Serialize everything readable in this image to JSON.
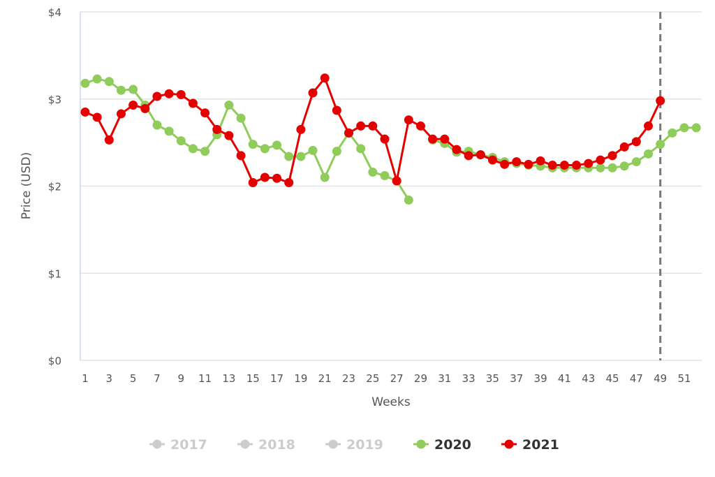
{
  "chart_data": {
    "type": "line",
    "title": "",
    "xlabel": "Weeks",
    "ylabel": "Price (USD)",
    "ylim": [
      0,
      4
    ],
    "xlim": [
      1,
      52
    ],
    "y_ticks": [
      "$0",
      "$1",
      "$2",
      "$3",
      "$4"
    ],
    "y_tick_values": [
      0,
      1,
      2,
      3,
      4
    ],
    "x_ticks": [
      1,
      3,
      5,
      7,
      9,
      11,
      13,
      15,
      17,
      19,
      21,
      23,
      25,
      27,
      29,
      31,
      33,
      35,
      37,
      39,
      41,
      43,
      45,
      47,
      49,
      51
    ],
    "grid": "horizontal",
    "marker_line_week": 49,
    "legend_position": "bottom",
    "legend": [
      {
        "name": "2017",
        "color": "#cccccc",
        "active": false
      },
      {
        "name": "2018",
        "color": "#cccccc",
        "active": false
      },
      {
        "name": "2019",
        "color": "#cccccc",
        "active": false
      },
      {
        "name": "2020",
        "color": "#8fcc5a",
        "active": true
      },
      {
        "name": "2021",
        "color": "#e50000",
        "active": true
      }
    ],
    "series": [
      {
        "name": "2020",
        "color": "#8fcc5a",
        "x": [
          1,
          2,
          3,
          4,
          5,
          6,
          7,
          8,
          9,
          10,
          11,
          12,
          13,
          14,
          15,
          16,
          17,
          18,
          19,
          20,
          21,
          22,
          23,
          24,
          25,
          26,
          27,
          28,
          30,
          31,
          32,
          33,
          34,
          35,
          36,
          37,
          38,
          39,
          40,
          41,
          42,
          43,
          44,
          45,
          46,
          47,
          48,
          49,
          50,
          51,
          52
        ],
        "values": [
          3.18,
          3.23,
          3.2,
          3.1,
          3.11,
          2.93,
          2.7,
          2.63,
          2.52,
          2.43,
          2.4,
          2.59,
          2.93,
          2.78,
          2.48,
          2.43,
          2.47,
          2.34,
          2.34,
          2.41,
          2.1,
          2.4,
          2.61,
          2.43,
          2.16,
          2.12,
          2.06,
          1.84,
          2.53,
          2.49,
          2.39,
          2.4,
          2.36,
          2.33,
          2.28,
          2.26,
          2.24,
          2.23,
          2.21,
          2.21,
          2.21,
          2.21,
          2.21,
          2.21,
          2.23,
          2.28,
          2.37,
          2.48,
          2.61,
          2.67,
          2.67
        ]
      },
      {
        "name": "2021",
        "color": "#e50000",
        "x": [
          1,
          2,
          3,
          4,
          5,
          6,
          7,
          8,
          9,
          10,
          11,
          12,
          13,
          14,
          15,
          16,
          17,
          18,
          19,
          20,
          21,
          22,
          23,
          24,
          25,
          26,
          27,
          28,
          29,
          30,
          31,
          32,
          33,
          34,
          35,
          36,
          37,
          38,
          39,
          40,
          41,
          42,
          43,
          44,
          45,
          46,
          47,
          48,
          49
        ],
        "values": [
          2.85,
          2.79,
          2.53,
          2.83,
          2.93,
          2.89,
          3.03,
          3.06,
          3.05,
          2.95,
          2.84,
          2.65,
          2.58,
          2.35,
          2.04,
          2.1,
          2.09,
          2.04,
          2.65,
          3.07,
          3.24,
          2.87,
          2.61,
          2.69,
          2.69,
          2.54,
          2.06,
          2.76,
          2.69,
          2.54,
          2.54,
          2.42,
          2.35,
          2.36,
          2.3,
          2.25,
          2.28,
          2.25,
          2.29,
          2.24,
          2.24,
          2.24,
          2.26,
          2.3,
          2.35,
          2.45,
          2.51,
          2.69,
          2.98
        ]
      }
    ]
  }
}
